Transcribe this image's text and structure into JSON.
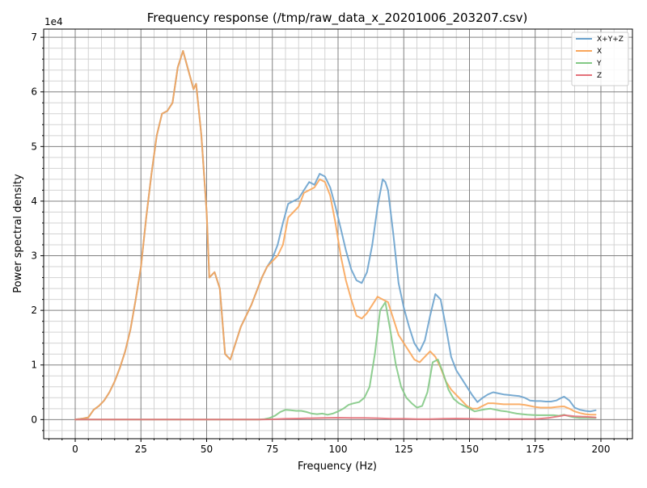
{
  "chart_data": {
    "type": "line",
    "title": "Frequency response (/tmp/raw_data_x_20201006_203207.csv)",
    "xlabel": "Frequency (Hz)",
    "ylabel": "Power spectral density",
    "y_multiplier_label": "1e4",
    "xlim": [
      -12,
      212
    ],
    "ylim": [
      -3500,
      71500
    ],
    "x_ticks": [
      0,
      25,
      50,
      75,
      100,
      125,
      150,
      175,
      200
    ],
    "y_ticks": [
      0,
      10000,
      20000,
      30000,
      40000,
      50000,
      60000,
      70000
    ],
    "y_tick_labels": [
      "0",
      "1",
      "2",
      "3",
      "4",
      "5",
      "6",
      "7"
    ],
    "x_minor_step": 5,
    "y_minor_step": 2000,
    "grid": true,
    "legend_position": "top-right",
    "series": [
      {
        "name": "X+Y+Z",
        "color": "#6aa2cd",
        "x": [
          0,
          3,
          5,
          7,
          9,
          11,
          13,
          15,
          17,
          19,
          21,
          23,
          25,
          27,
          29,
          31,
          33,
          35,
          37,
          39,
          41,
          43,
          45,
          46,
          48,
          50,
          51,
          53,
          55,
          57,
          59,
          61,
          63,
          65,
          67,
          69,
          71,
          73,
          75,
          77,
          79,
          81,
          83,
          85,
          87,
          89,
          91,
          93,
          95,
          97,
          99,
          101,
          103,
          105,
          107,
          109,
          111,
          113,
          115,
          117,
          118,
          119,
          121,
          123,
          125,
          127,
          129,
          131,
          133,
          135,
          137,
          139,
          141,
          143,
          145,
          147,
          149,
          151,
          153,
          155,
          157,
          159,
          161,
          163,
          165,
          167,
          169,
          171,
          173,
          175,
          177,
          179,
          181,
          183,
          185,
          186,
          188,
          190,
          192,
          194,
          196,
          198
        ],
        "y": [
          0,
          200,
          400,
          1800,
          2500,
          3500,
          5000,
          7000,
          9500,
          12500,
          16500,
          22000,
          28000,
          37000,
          45000,
          52000,
          56000,
          56500,
          58000,
          64500,
          67500,
          64000,
          60500,
          61500,
          52000,
          38000,
          26000,
          27000,
          24000,
          12000,
          11000,
          14000,
          17000,
          19000,
          21000,
          23500,
          26000,
          28000,
          29500,
          32000,
          36000,
          39500,
          40000,
          40500,
          42000,
          43500,
          43000,
          45000,
          44500,
          42500,
          39000,
          35000,
          31000,
          27500,
          25500,
          25000,
          27000,
          32000,
          39000,
          44000,
          43500,
          42000,
          34000,
          25000,
          20500,
          17000,
          14000,
          12500,
          14500,
          19000,
          23000,
          22000,
          17000,
          11500,
          9000,
          7500,
          6000,
          4500,
          3200,
          4000,
          4600,
          5000,
          4800,
          4600,
          4500,
          4400,
          4300,
          4000,
          3500,
          3400,
          3400,
          3300,
          3300,
          3500,
          4000,
          4200,
          3500,
          2200,
          1800,
          1600,
          1500,
          1700
        ]
      },
      {
        "name": "X",
        "color": "#f9a65a",
        "x": [
          0,
          3,
          5,
          7,
          9,
          11,
          13,
          15,
          17,
          19,
          21,
          23,
          25,
          27,
          29,
          31,
          33,
          35,
          37,
          39,
          41,
          43,
          45,
          46,
          48,
          50,
          51,
          53,
          55,
          57,
          59,
          61,
          63,
          65,
          67,
          69,
          71,
          73,
          75,
          77,
          79,
          81,
          83,
          85,
          87,
          89,
          91,
          93,
          95,
          97,
          99,
          101,
          103,
          105,
          107,
          109,
          111,
          113,
          115,
          117,
          119,
          121,
          123,
          125,
          127,
          129,
          131,
          133,
          135,
          137,
          139,
          141,
          143,
          145,
          147,
          149,
          151,
          153,
          155,
          157,
          159,
          161,
          163,
          165,
          167,
          169,
          171,
          173,
          175,
          177,
          179,
          181,
          183,
          185,
          186,
          188,
          190,
          192,
          194,
          196,
          198
        ],
        "y": [
          0,
          200,
          400,
          1800,
          2500,
          3500,
          5000,
          7000,
          9500,
          12500,
          16500,
          22000,
          28000,
          37000,
          45000,
          52000,
          56000,
          56500,
          58000,
          64500,
          67500,
          64000,
          60500,
          61500,
          52000,
          38000,
          26000,
          27000,
          24000,
          12000,
          11000,
          14000,
          17000,
          19000,
          21000,
          23500,
          26000,
          28000,
          29000,
          30000,
          32000,
          37000,
          38000,
          39000,
          41500,
          42000,
          42500,
          44000,
          43500,
          41000,
          36000,
          30000,
          25500,
          22000,
          19000,
          18500,
          19500,
          21000,
          22500,
          22000,
          21500,
          18500,
          15500,
          14000,
          12500,
          11000,
          10500,
          11500,
          12500,
          11500,
          9500,
          7000,
          5500,
          4500,
          3500,
          2500,
          2000,
          2000,
          2500,
          3000,
          3000,
          2900,
          2800,
          2800,
          2800,
          2800,
          2700,
          2500,
          2300,
          2200,
          2200,
          2200,
          2300,
          2400,
          2400,
          2000,
          1500,
          1200,
          1000,
          900,
          900
        ]
      },
      {
        "name": "Y",
        "color": "#83c985",
        "x": [
          0,
          10,
          20,
          30,
          40,
          50,
          60,
          70,
          72,
          74,
          76,
          78,
          80,
          82,
          84,
          86,
          88,
          90,
          92,
          94,
          96,
          98,
          100,
          102,
          104,
          106,
          108,
          110,
          112,
          114,
          116,
          118,
          120,
          122,
          124,
          126,
          128,
          130,
          132,
          134,
          136,
          138,
          140,
          142,
          144,
          146,
          148,
          150,
          152,
          154,
          156,
          158,
          160,
          162,
          164,
          166,
          168,
          170,
          172,
          174,
          176,
          178,
          180,
          182,
          184,
          186,
          188,
          190,
          192,
          194,
          196,
          198
        ],
        "y": [
          0,
          0,
          0,
          0,
          0,
          0,
          0,
          0,
          100,
          300,
          700,
          1400,
          1800,
          1700,
          1600,
          1600,
          1400,
          1100,
          1000,
          1100,
          900,
          1100,
          1500,
          2000,
          2700,
          3000,
          3200,
          4000,
          6000,
          12000,
          20000,
          21500,
          16000,
          10000,
          6000,
          4000,
          3000,
          2200,
          2500,
          5000,
          10500,
          11000,
          8500,
          5500,
          3800,
          3000,
          2500,
          2000,
          1500,
          1700,
          1900,
          2000,
          1800,
          1600,
          1500,
          1300,
          1100,
          1000,
          900,
          850,
          800,
          800,
          800,
          800,
          700,
          900,
          600,
          400,
          300,
          300,
          300,
          300
        ]
      },
      {
        "name": "Z",
        "color": "#e4717a",
        "x": [
          0,
          10,
          20,
          30,
          40,
          50,
          60,
          70,
          75,
          80,
          85,
          90,
          95,
          100,
          105,
          110,
          115,
          120,
          125,
          130,
          135,
          140,
          145,
          150,
          155,
          160,
          165,
          170,
          175,
          180,
          185,
          186,
          190,
          195,
          198
        ],
        "y": [
          0,
          0,
          0,
          0,
          0,
          0,
          0,
          0,
          50,
          150,
          200,
          250,
          300,
          350,
          300,
          300,
          250,
          150,
          150,
          100,
          100,
          150,
          200,
          150,
          100,
          100,
          100,
          100,
          100,
          300,
          700,
          800,
          600,
          500,
          400
        ]
      }
    ]
  }
}
